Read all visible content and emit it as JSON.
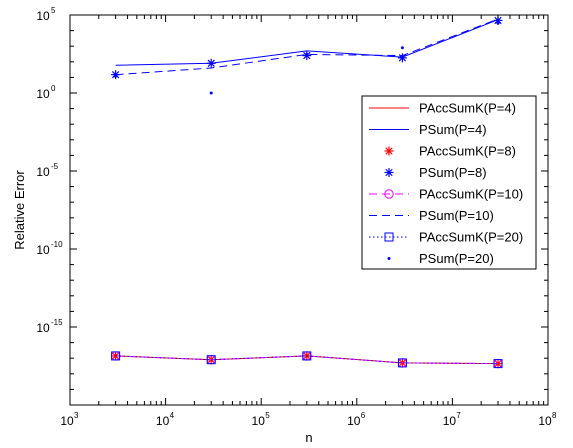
{
  "chart_data": {
    "type": "line",
    "xscale": "log",
    "yscale": "log",
    "xlim": [
      1000,
      100000000
    ],
    "ylim": [
      1e-20,
      100000
    ],
    "xlabel": "n",
    "ylabel": "Relative Error",
    "grid": false,
    "legend_position": "right",
    "x_ticks": [
      {
        "base": "10",
        "exp": "3"
      },
      {
        "base": "10",
        "exp": "4"
      },
      {
        "base": "10",
        "exp": "5"
      },
      {
        "base": "10",
        "exp": "6"
      },
      {
        "base": "10",
        "exp": "7"
      },
      {
        "base": "10",
        "exp": "8"
      }
    ],
    "y_ticks": [
      {
        "base": "10",
        "exp": "5"
      },
      {
        "base": "10",
        "exp": "0"
      },
      {
        "base": "10",
        "exp": "-5"
      },
      {
        "base": "10",
        "exp": "-10"
      },
      {
        "base": "10",
        "exp": "-15"
      }
    ],
    "x": [
      3000,
      30000,
      300000,
      3000000,
      30000000
    ],
    "series": [
      {
        "name": "PAccSumK(P=4)",
        "color": "#ff0000",
        "line": "solid",
        "marker": "none",
        "values": [
          1.4e-17,
          8e-18,
          1.4e-17,
          5e-18,
          4.5e-18
        ]
      },
      {
        "name": "PSum(P=4)",
        "color": "#0000ff",
        "line": "solid",
        "marker": "none",
        "values": [
          60,
          80,
          500,
          200,
          50000
        ]
      },
      {
        "name": "PAccSumK(P=8)",
        "color": "#ff0000",
        "line": "none",
        "marker": "asterisk",
        "values": [
          1.4e-17,
          8e-18,
          1.4e-17,
          5e-18,
          4.5e-18
        ]
      },
      {
        "name": "PSum(P=8)",
        "color": "#0000ff",
        "line": "none",
        "marker": "asterisk",
        "values": [
          15,
          80,
          250,
          180,
          45000
        ]
      },
      {
        "name": "PAccSumK(P=10)",
        "color": "#ff00ff",
        "line": "dashed",
        "marker": "circle",
        "values": [
          1.4e-17,
          8e-18,
          1.4e-17,
          5e-18,
          4.5e-18
        ]
      },
      {
        "name": "PSum(P=10)",
        "color": "#0000ff",
        "line": "dashed",
        "marker": "none",
        "values": [
          15,
          40,
          300,
          250,
          55000
        ]
      },
      {
        "name": "PAccSumK(P=20)",
        "color": "#0000ff",
        "line": "dotted",
        "marker": "square",
        "values": [
          1.4e-17,
          8e-18,
          1.4e-17,
          5e-18,
          4.5e-18
        ]
      },
      {
        "name": "PSum(P=20)",
        "color": "#0000ff",
        "line": "none",
        "marker": "dot",
        "values": [
          12,
          1,
          300,
          800,
          30000
        ]
      }
    ]
  }
}
